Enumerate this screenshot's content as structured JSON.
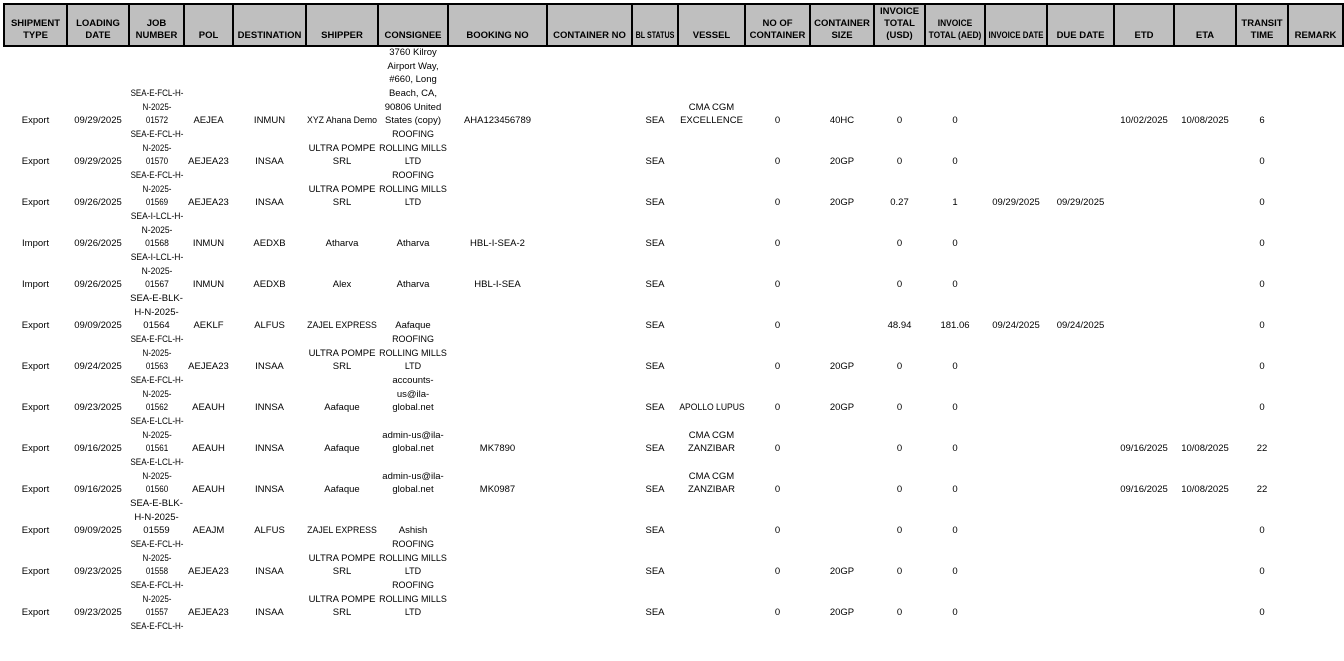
{
  "colors": {
    "header_bg": "#bfbfbf",
    "header_border": "#000000",
    "text": "#000000",
    "background": "#ffffff"
  },
  "table": {
    "columns": [
      "SHIPMENT\nTYPE",
      "LOADING\nDATE",
      "JOB\nNUMBER",
      "POL",
      "DESTINATION",
      "SHIPPER",
      "CONSIGNEE",
      "BOOKING NO",
      "CONTAINER NO",
      "BL STATUS",
      "VESSEL",
      "NO OF\nCONTAINER",
      "CONTAINER\nSIZE",
      "INVOICE\nTOTAL\n(USD)",
      "INVOICE\nTOTAL (AED)",
      "INVOICE DATE",
      "DUE DATE",
      "ETD",
      "ETA",
      "TRANSIT\nTIME",
      "REMARK"
    ],
    "rows": [
      [
        "Export",
        "09/29/2025",
        "SEA-E-FCL-H-\nN-2025-\n01572",
        "AEJEA",
        "INMUN",
        "XYZ Ahana Demo",
        "3760 Kilroy\nAirport Way,\n#660, Long\nBeach, CA,\n90806 United\nStates (copy)",
        "AHA123456789",
        "",
        "SEA",
        "CMA CGM\nEXCELLENCE",
        "0",
        "40HC",
        "0",
        "0",
        "",
        "",
        "10/02/2025",
        "10/08/2025",
        "6",
        ""
      ],
      [
        "Export",
        "09/29/2025",
        "SEA-E-FCL-H-\nN-2025-\n01570",
        "AEJEA23",
        "INSAA",
        "ULTRA POMPE\nSRL",
        "ROOFING\nROLLING MILLS\nLTD",
        "",
        "",
        "SEA",
        "",
        "0",
        "20GP",
        "0",
        "0",
        "",
        "",
        "",
        "",
        "0",
        ""
      ],
      [
        "Export",
        "09/26/2025",
        "SEA-E-FCL-H-\nN-2025-\n01569",
        "AEJEA23",
        "INSAA",
        "ULTRA POMPE\nSRL",
        "ROOFING\nROLLING MILLS\nLTD",
        "",
        "",
        "SEA",
        "",
        "0",
        "20GP",
        "0.27",
        "1",
        "09/29/2025",
        "09/29/2025",
        "",
        "",
        "0",
        ""
      ],
      [
        "Import",
        "09/26/2025",
        "SEA-I-LCL-H-\nN-2025-\n01568",
        "INMUN",
        "AEDXB",
        "Atharva",
        "Atharva",
        "HBL-I-SEA-2",
        "",
        "SEA",
        "",
        "0",
        "",
        "0",
        "0",
        "",
        "",
        "",
        "",
        "0",
        ""
      ],
      [
        "Import",
        "09/26/2025",
        "SEA-I-LCL-H-\nN-2025-\n01567",
        "INMUN",
        "AEDXB",
        "Alex",
        "Atharva",
        "HBL-I-SEA",
        "",
        "SEA",
        "",
        "0",
        "",
        "0",
        "0",
        "",
        "",
        "",
        "",
        "0",
        ""
      ],
      [
        "Export",
        "09/09/2025",
        "SEA-E-BLK-\nH-N-2025-\n01564",
        "AEKLF",
        "ALFUS",
        "ZAJEL EXPRESS",
        "Aafaque",
        "",
        "",
        "SEA",
        "",
        "0",
        "",
        "48.94",
        "181.06",
        "09/24/2025",
        "09/24/2025",
        "",
        "",
        "0",
        ""
      ],
      [
        "Export",
        "09/24/2025",
        "SEA-E-FCL-H-\nN-2025-\n01563",
        "AEJEA23",
        "INSAA",
        "ULTRA POMPE\nSRL",
        "ROOFING\nROLLING MILLS\nLTD",
        "",
        "",
        "SEA",
        "",
        "0",
        "20GP",
        "0",
        "0",
        "",
        "",
        "",
        "",
        "0",
        ""
      ],
      [
        "Export",
        "09/23/2025",
        "SEA-E-FCL-H-\nN-2025-\n01562",
        "AEAUH",
        "INNSA",
        "Aafaque",
        "accounts-\nus@ila-\nglobal.net",
        "",
        "",
        "SEA",
        "APOLLO LUPUS",
        "0",
        "20GP",
        "0",
        "0",
        "",
        "",
        "",
        "",
        "0",
        ""
      ],
      [
        "Export",
        "09/16/2025",
        "SEA-E-LCL-H-\nN-2025-\n01561",
        "AEAUH",
        "INNSA",
        "Aafaque",
        "admin-us@ila-\nglobal.net",
        "MK7890",
        "",
        "SEA",
        "CMA CGM\nZANZIBAR",
        "0",
        "",
        "0",
        "0",
        "",
        "",
        "09/16/2025",
        "10/08/2025",
        "22",
        ""
      ],
      [
        "Export",
        "09/16/2025",
        "SEA-E-LCL-H-\nN-2025-\n01560",
        "AEAUH",
        "INNSA",
        "Aafaque",
        "admin-us@ila-\nglobal.net",
        "MK0987",
        "",
        "SEA",
        "CMA CGM\nZANZIBAR",
        "0",
        "",
        "0",
        "0",
        "",
        "",
        "09/16/2025",
        "10/08/2025",
        "22",
        ""
      ],
      [
        "Export",
        "09/09/2025",
        "SEA-E-BLK-\nH-N-2025-\n01559",
        "AEAJM",
        "ALFUS",
        "ZAJEL EXPRESS",
        "Ashish",
        "",
        "",
        "SEA",
        "",
        "0",
        "",
        "0",
        "0",
        "",
        "",
        "",
        "",
        "0",
        ""
      ],
      [
        "Export",
        "09/23/2025",
        "SEA-E-FCL-H-\nN-2025-\n01558",
        "AEJEA23",
        "INSAA",
        "ULTRA POMPE\nSRL",
        "ROOFING\nROLLING MILLS\nLTD",
        "",
        "",
        "SEA",
        "",
        "0",
        "20GP",
        "0",
        "0",
        "",
        "",
        "",
        "",
        "0",
        ""
      ],
      [
        "Export",
        "09/23/2025",
        "SEA-E-FCL-H-\nN-2025-\n01557",
        "AEJEA23",
        "INSAA",
        "ULTRA POMPE\nSRL",
        "ROOFING\nROLLING MILLS\nLTD",
        "",
        "",
        "SEA",
        "",
        "0",
        "20GP",
        "0",
        "0",
        "",
        "",
        "",
        "",
        "0",
        ""
      ],
      [
        "",
        "",
        "SEA-E-FCL-H-",
        "",
        "",
        "",
        "",
        "",
        "",
        "",
        "",
        "",
        "",
        "",
        "",
        "",
        "",
        "",
        "",
        "",
        ""
      ]
    ]
  }
}
